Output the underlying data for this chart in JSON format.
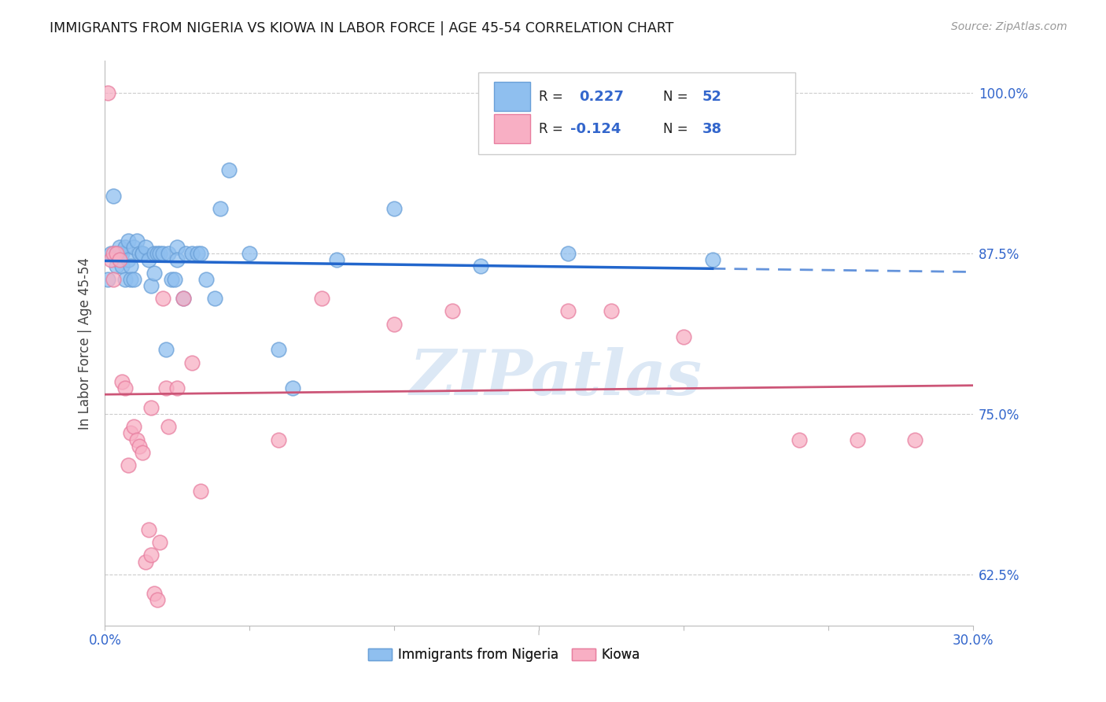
{
  "title": "IMMIGRANTS FROM NIGERIA VS KIOWA IN LABOR FORCE | AGE 45-54 CORRELATION CHART",
  "source": "Source: ZipAtlas.com",
  "ylabel": "In Labor Force | Age 45-54",
  "xlim": [
    0.0,
    0.3
  ],
  "ylim": [
    0.585,
    1.025
  ],
  "xticks": [
    0.0,
    0.05,
    0.1,
    0.15,
    0.2,
    0.25,
    0.3
  ],
  "yticks": [
    0.625,
    0.75,
    0.875,
    1.0
  ],
  "yticklabels": [
    "62.5%",
    "75.0%",
    "87.5%",
    "100.0%"
  ],
  "nigeria_color": "#8fbfef",
  "nigeria_edge": "#6aa0d8",
  "kiowa_color": "#f8afc4",
  "kiowa_edge": "#e87fa0",
  "nigeria_line_color": "#2266cc",
  "kiowa_line_color": "#cc5577",
  "nigeria_R": 0.227,
  "nigeria_N": 52,
  "kiowa_R": -0.124,
  "kiowa_N": 38,
  "nigeria_scatter_x": [
    0.001,
    0.002,
    0.003,
    0.004,
    0.004,
    0.005,
    0.005,
    0.006,
    0.006,
    0.007,
    0.007,
    0.008,
    0.008,
    0.009,
    0.009,
    0.01,
    0.01,
    0.011,
    0.012,
    0.013,
    0.013,
    0.014,
    0.015,
    0.016,
    0.017,
    0.017,
    0.018,
    0.019,
    0.02,
    0.021,
    0.022,
    0.023,
    0.024,
    0.025,
    0.025,
    0.027,
    0.028,
    0.03,
    0.032,
    0.033,
    0.035,
    0.038,
    0.04,
    0.043,
    0.05,
    0.06,
    0.065,
    0.08,
    0.1,
    0.13,
    0.16,
    0.21
  ],
  "nigeria_scatter_y": [
    0.855,
    0.875,
    0.92,
    0.875,
    0.865,
    0.875,
    0.88,
    0.875,
    0.865,
    0.88,
    0.855,
    0.885,
    0.87,
    0.865,
    0.855,
    0.88,
    0.855,
    0.885,
    0.875,
    0.875,
    0.875,
    0.88,
    0.87,
    0.85,
    0.875,
    0.86,
    0.875,
    0.875,
    0.875,
    0.8,
    0.875,
    0.855,
    0.855,
    0.88,
    0.87,
    0.84,
    0.875,
    0.875,
    0.875,
    0.875,
    0.855,
    0.84,
    0.91,
    0.94,
    0.875,
    0.8,
    0.77,
    0.87,
    0.91,
    0.865,
    0.875,
    0.87
  ],
  "kiowa_scatter_x": [
    0.001,
    0.002,
    0.003,
    0.003,
    0.004,
    0.005,
    0.006,
    0.007,
    0.008,
    0.009,
    0.01,
    0.011,
    0.012,
    0.013,
    0.014,
    0.015,
    0.016,
    0.016,
    0.017,
    0.018,
    0.019,
    0.02,
    0.021,
    0.022,
    0.025,
    0.027,
    0.03,
    0.033,
    0.06,
    0.075,
    0.1,
    0.12,
    0.16,
    0.175,
    0.2,
    0.24,
    0.26,
    0.28
  ],
  "kiowa_scatter_y": [
    1.0,
    0.87,
    0.875,
    0.855,
    0.875,
    0.87,
    0.775,
    0.77,
    0.71,
    0.735,
    0.74,
    0.73,
    0.725,
    0.72,
    0.635,
    0.66,
    0.64,
    0.755,
    0.61,
    0.605,
    0.65,
    0.84,
    0.77,
    0.74,
    0.77,
    0.84,
    0.79,
    0.69,
    0.73,
    0.84,
    0.82,
    0.83,
    0.83,
    0.83,
    0.81,
    0.73,
    0.73,
    0.73
  ],
  "background_color": "#ffffff",
  "grid_color": "#cccccc",
  "watermark": "ZIPatlas",
  "watermark_color": "#dce8f5"
}
